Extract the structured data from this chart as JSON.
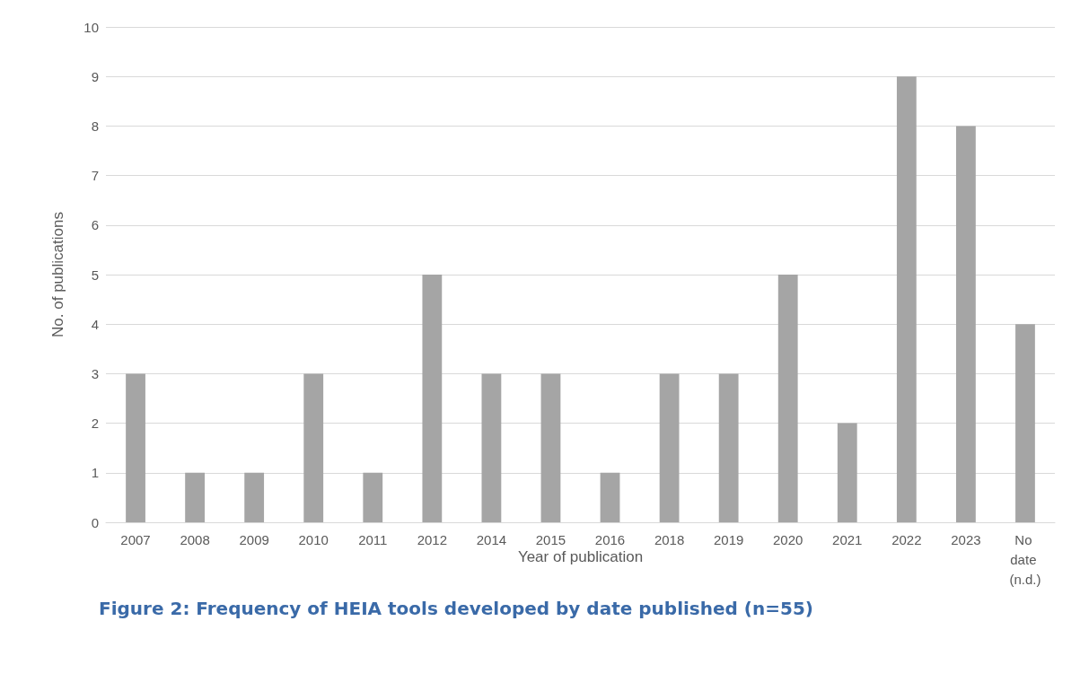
{
  "chart_data": {
    "type": "bar",
    "title": "Figure 2: Frequency of HEIA tools developed by date published (n=55)",
    "xlabel": "Year of publication",
    "ylabel": "No. of publications",
    "categories": [
      "2007",
      "2008",
      "2009",
      "2010",
      "2011",
      "2012",
      "2014",
      "2015",
      "2016",
      "2018",
      "2019",
      "2020",
      "2021",
      "2022",
      "2023",
      "No date (n.d.)"
    ],
    "values": [
      3,
      1,
      1,
      3,
      1,
      5,
      3,
      3,
      1,
      3,
      3,
      5,
      2,
      9,
      8,
      4
    ],
    "color": "#a5a5a5",
    "ylim": [
      0,
      10
    ],
    "yticks": [
      0,
      1,
      2,
      3,
      4,
      5,
      6,
      7,
      8,
      9,
      10
    ],
    "grid": "y"
  }
}
